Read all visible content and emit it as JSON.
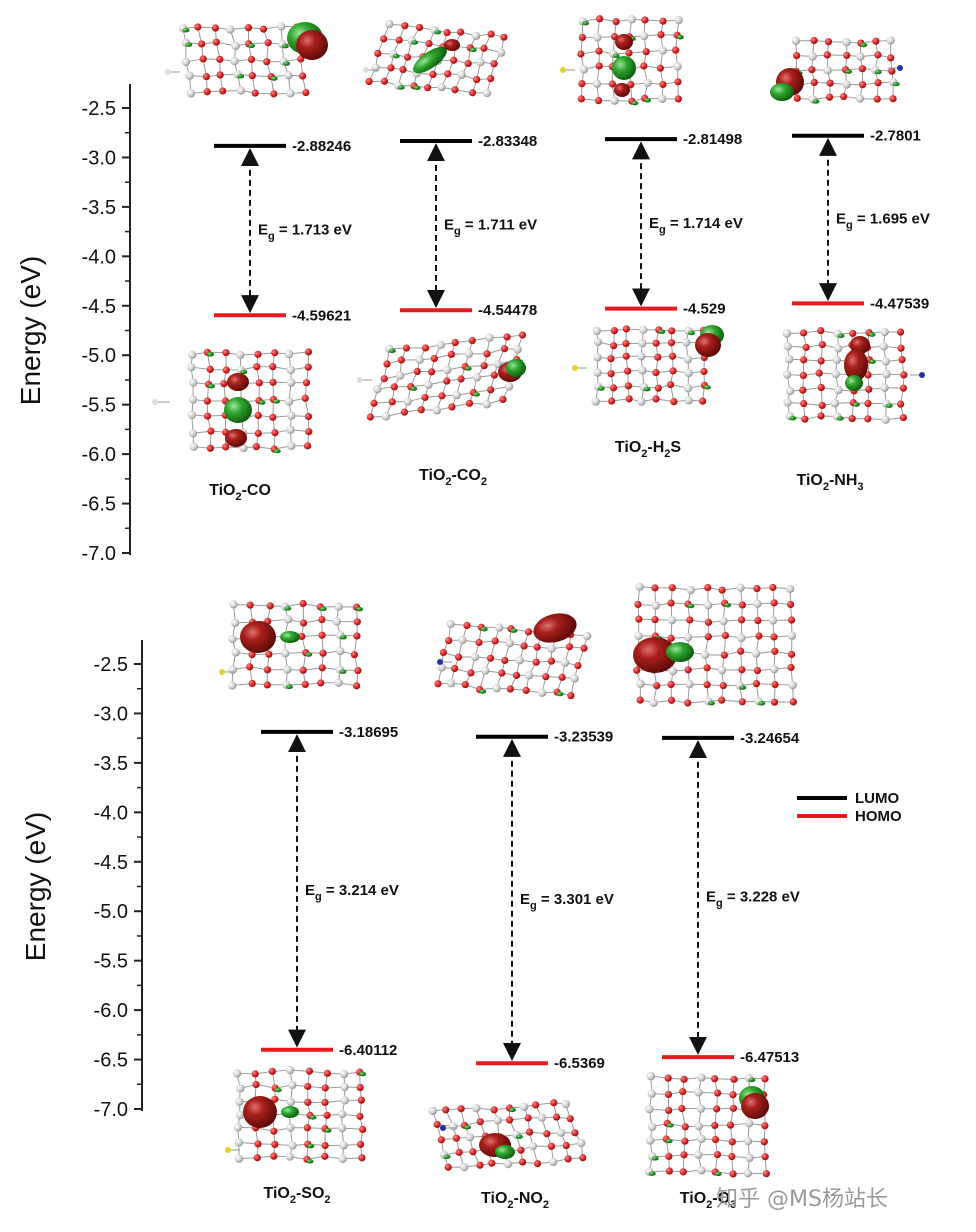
{
  "chart_data": [
    {
      "type": "energy-level-diagram",
      "ylabel": "Energy (eV)",
      "ylim": [
        -7.0,
        -2.5
      ],
      "yticks": [
        "-2.5",
        "-3.0",
        "-3.5",
        "-4.0",
        "-4.5",
        "-5.0",
        "-5.5",
        "-6.0",
        "-6.5",
        "-7.0"
      ],
      "systems": [
        {
          "label_main": "TiO",
          "label_sub": "2",
          "label_rest": "-CO",
          "lumo": -2.88246,
          "lumo_text": "-2.88246",
          "homo": -4.59621,
          "homo_text": "-4.59621",
          "gap_prefix": "E",
          "gap_sub": "g",
          "gap_text": " = 1.713 eV"
        },
        {
          "label_main": "TiO",
          "label_sub": "2",
          "label_rest": "-CO",
          "label_sub2": "2",
          "lumo": -2.83348,
          "lumo_text": "-2.83348",
          "homo": -4.54478,
          "homo_text": "-4.54478",
          "gap_prefix": "E",
          "gap_sub": "g",
          "gap_text": " = 1.711 eV"
        },
        {
          "label_main": "TiO",
          "label_sub": "2",
          "label_rest": "-H",
          "label_sub2": "2",
          "label_rest2": "S",
          "lumo": -2.81498,
          "lumo_text": "-2.81498",
          "homo": -4.529,
          "homo_text": "-4.529",
          "gap_prefix": "E",
          "gap_sub": "g",
          "gap_text": " = 1.714 eV"
        },
        {
          "label_main": "TiO",
          "label_sub": "2",
          "label_rest": "-NH",
          "label_sub2": "3",
          "lumo": -2.7801,
          "lumo_text": "-2.7801",
          "homo": -4.47539,
          "homo_text": "-4.47539",
          "gap_prefix": "E",
          "gap_sub": "g",
          "gap_text": " = 1.695 eV"
        }
      ]
    },
    {
      "type": "energy-level-diagram",
      "ylabel": "Energy (eV)",
      "ylim": [
        -7.0,
        -2.5
      ],
      "yticks": [
        "-2.5",
        "-3.0",
        "-3.5",
        "-4.0",
        "-4.5",
        "-5.0",
        "-5.5",
        "-6.0",
        "-6.5",
        "-7.0"
      ],
      "legend": [
        {
          "name": "LUMO",
          "color": "#000000"
        },
        {
          "name": "HOMO",
          "color": "#e8191c"
        }
      ],
      "systems": [
        {
          "label_main": "TiO",
          "label_sub": "2",
          "label_rest": "-SO",
          "label_sub2": "2",
          "lumo": -3.18695,
          "lumo_text": "-3.18695",
          "homo": -6.40112,
          "homo_text": "-6.40112",
          "gap_prefix": "E",
          "gap_sub": "g",
          "gap_text": " = 3.214 eV"
        },
        {
          "label_main": "TiO",
          "label_sub": "2",
          "label_rest": "-NO",
          "label_sub2": "2",
          "lumo": -3.23539,
          "lumo_text": "-3.23539",
          "homo": -6.5369,
          "homo_text": "-6.5369",
          "gap_prefix": "E",
          "gap_sub": "g",
          "gap_text": " = 3.301 eV"
        },
        {
          "label_main": "TiO",
          "label_sub": "2",
          "label_rest": "-O",
          "label_sub2": "3",
          "lumo": -3.24654,
          "lumo_text": "-3.24654",
          "homo": -6.47513,
          "homo_text": "-6.47513",
          "gap_prefix": "E",
          "gap_sub": "g",
          "gap_text": " = 3.228 eV"
        }
      ]
    }
  ],
  "colors": {
    "lumo": "#000000",
    "homo": "#e8191c",
    "orbital_red": "#8b1410",
    "orbital_green": "#1e8f1e",
    "atom_red": "#d52626",
    "atom_grey": "#c9c9c9"
  },
  "watermark": "知乎 @MS杨站长"
}
